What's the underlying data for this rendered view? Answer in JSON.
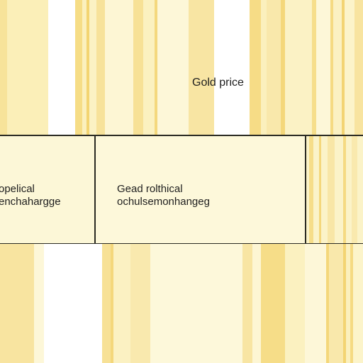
{
  "header": {
    "title": "Gold price"
  },
  "panels": [
    {
      "line1": "opelical",
      "line2": "enchahargge"
    },
    {
      "line1": "Gead rolthical",
      "line2": "ochulsemonhangeg"
    }
  ],
  "colors": {
    "gold_light": "#fbf0b8",
    "gold_mid": "#f6df8e",
    "gold_deep": "#f0cf6a",
    "cream": "#fdf8da",
    "border": "#2a2a22"
  }
}
